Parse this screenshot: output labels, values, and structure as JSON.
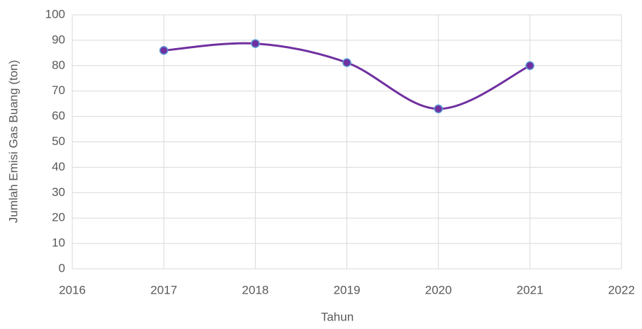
{
  "chart_data": {
    "type": "line",
    "x_label": "Tahun",
    "y_label": "Jumlah Emisi Gas Buang (ton)",
    "x": [
      2017,
      2018,
      2019,
      2020,
      2021
    ],
    "series": [
      {
        "name": "Jumlah Emisi Gas Buang",
        "color": "#7030a0",
        "marker_edge": "#5b9bd5",
        "values": [
          86,
          88.7,
          81.2,
          63,
          80
        ]
      }
    ],
    "xlim": [
      2016,
      2022
    ],
    "xticks": [
      2016,
      2017,
      2018,
      2019,
      2020,
      2021,
      2022
    ],
    "ylim": [
      0,
      100
    ],
    "yticks": [
      0,
      10,
      20,
      30,
      40,
      50,
      60,
      70,
      80,
      90,
      100
    ],
    "grid": true,
    "smooth": true
  }
}
